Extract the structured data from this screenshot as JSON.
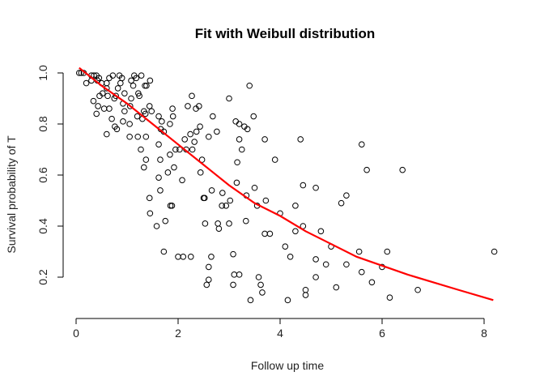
{
  "chart_data": {
    "type": "scatter",
    "title": "Fit with Weibull distribution",
    "xlabel": "Follow up time",
    "ylabel": "Survival probability of T",
    "xlim": [
      0,
      8.2
    ],
    "ylim": [
      0.1,
      1.0
    ],
    "xticks": [
      "0",
      "2",
      "4",
      "6",
      "8"
    ],
    "yticks": [
      "0.2",
      "0.4",
      "0.6",
      "0.8",
      "1.0"
    ],
    "grid": false,
    "colors": {
      "points": "#000000",
      "fit_line": "#ff0000"
    },
    "points": [
      [
        0.06,
        1.0
      ],
      [
        0.1,
        1.0
      ],
      [
        0.15,
        1.0
      ],
      [
        0.3,
        0.99
      ],
      [
        0.35,
        0.99
      ],
      [
        0.4,
        0.99
      ],
      [
        0.45,
        0.98
      ],
      [
        0.3,
        0.97
      ],
      [
        0.42,
        0.97
      ],
      [
        0.2,
        0.96
      ],
      [
        0.5,
        0.96
      ],
      [
        0.6,
        0.96
      ],
      [
        0.65,
        0.98
      ],
      [
        0.72,
        0.99
      ],
      [
        0.85,
        0.99
      ],
      [
        0.9,
        0.98
      ],
      [
        0.87,
        0.96
      ],
      [
        0.6,
        0.94
      ],
      [
        0.52,
        0.92
      ],
      [
        0.62,
        0.91
      ],
      [
        0.78,
        0.91
      ],
      [
        0.95,
        0.92
      ],
      [
        0.75,
        0.9
      ],
      [
        0.92,
        0.88
      ],
      [
        1.08,
        0.9
      ],
      [
        1.22,
        0.92
      ],
      [
        1.24,
        0.91
      ],
      [
        1.08,
        0.97
      ],
      [
        1.14,
        0.99
      ],
      [
        1.18,
        0.98
      ],
      [
        1.28,
        0.99
      ],
      [
        1.12,
        0.95
      ],
      [
        1.38,
        0.95
      ],
      [
        1.45,
        0.97
      ],
      [
        1.35,
        0.95
      ],
      [
        1.06,
        0.87
      ],
      [
        1.33,
        0.85
      ],
      [
        1.44,
        0.87
      ],
      [
        1.36,
        0.84
      ],
      [
        0.95,
        0.85
      ],
      [
        1.2,
        0.83
      ],
      [
        1.3,
        0.82
      ],
      [
        1.48,
        0.85
      ],
      [
        1.62,
        0.83
      ],
      [
        1.68,
        0.81
      ],
      [
        1.84,
        0.8
      ],
      [
        1.9,
        0.83
      ],
      [
        1.66,
        0.78
      ],
      [
        1.72,
        0.77
      ],
      [
        1.05,
        0.8
      ],
      [
        0.92,
        0.81
      ],
      [
        0.65,
        0.86
      ],
      [
        0.7,
        0.82
      ],
      [
        0.76,
        0.79
      ],
      [
        0.6,
        0.76
      ],
      [
        0.8,
        0.78
      ],
      [
        0.4,
        0.84
      ],
      [
        0.43,
        0.87
      ],
      [
        0.34,
        0.89
      ],
      [
        0.46,
        0.91
      ],
      [
        0.82,
        0.94
      ],
      [
        0.55,
        0.86
      ],
      [
        1.05,
        0.75
      ],
      [
        1.37,
        0.75
      ],
      [
        1.21,
        0.75
      ],
      [
        1.27,
        0.7
      ],
      [
        1.62,
        0.72
      ],
      [
        1.37,
        0.66
      ],
      [
        1.33,
        0.63
      ],
      [
        1.65,
        0.66
      ],
      [
        1.84,
        0.68
      ],
      [
        1.95,
        0.7
      ],
      [
        2.03,
        0.7
      ],
      [
        2.16,
        0.7
      ],
      [
        2.13,
        0.74
      ],
      [
        2.24,
        0.76
      ],
      [
        2.32,
        0.73
      ],
      [
        2.36,
        0.77
      ],
      [
        2.43,
        0.79
      ],
      [
        2.27,
        0.91
      ],
      [
        2.35,
        0.86
      ],
      [
        2.41,
        0.87
      ],
      [
        2.19,
        0.87
      ],
      [
        1.89,
        0.86
      ],
      [
        2.28,
        0.7
      ],
      [
        2.47,
        0.66
      ],
      [
        2.6,
        0.75
      ],
      [
        2.68,
        0.83
      ],
      [
        2.76,
        0.77
      ],
      [
        3.0,
        0.9
      ],
      [
        3.2,
        0.8
      ],
      [
        3.3,
        0.79
      ],
      [
        3.25,
        0.7
      ],
      [
        3.2,
        0.74
      ],
      [
        3.4,
        0.95
      ],
      [
        3.48,
        0.83
      ],
      [
        3.36,
        0.78
      ],
      [
        3.13,
        0.81
      ],
      [
        3.15,
        0.57
      ],
      [
        3.5,
        0.55
      ],
      [
        3.16,
        0.65
      ],
      [
        3.02,
        0.5
      ],
      [
        2.44,
        0.61
      ],
      [
        2.08,
        0.58
      ],
      [
        1.8,
        0.61
      ],
      [
        1.92,
        0.63
      ],
      [
        2.5,
        0.51
      ],
      [
        2.52,
        0.51
      ],
      [
        2.66,
        0.54
      ],
      [
        2.86,
        0.48
      ],
      [
        2.8,
        0.39
      ],
      [
        2.78,
        0.41
      ],
      [
        2.87,
        0.53
      ],
      [
        2.94,
        0.48
      ],
      [
        2.53,
        0.41
      ],
      [
        2.0,
        0.28
      ],
      [
        2.1,
        0.28
      ],
      [
        2.25,
        0.28
      ],
      [
        1.72,
        0.3
      ],
      [
        2.65,
        0.28
      ],
      [
        2.6,
        0.24
      ],
      [
        2.6,
        0.19
      ],
      [
        2.56,
        0.17
      ],
      [
        1.44,
        0.51
      ],
      [
        1.45,
        0.45
      ],
      [
        1.58,
        0.4
      ],
      [
        1.85,
        0.48
      ],
      [
        1.75,
        0.42
      ],
      [
        1.88,
        0.48
      ],
      [
        1.65,
        0.54
      ],
      [
        1.62,
        0.59
      ],
      [
        3.34,
        0.52
      ],
      [
        3.55,
        0.48
      ],
      [
        3.72,
        0.5
      ],
      [
        3.33,
        0.42
      ],
      [
        3.0,
        0.41
      ],
      [
        3.08,
        0.29
      ],
      [
        3.1,
        0.21
      ],
      [
        3.08,
        0.17
      ],
      [
        3.2,
        0.21
      ],
      [
        3.58,
        0.2
      ],
      [
        3.62,
        0.17
      ],
      [
        3.65,
        0.14
      ],
      [
        3.42,
        0.11
      ],
      [
        3.7,
        0.37
      ],
      [
        3.8,
        0.37
      ],
      [
        3.9,
        0.66
      ],
      [
        3.7,
        0.74
      ],
      [
        4.0,
        0.45
      ],
      [
        4.4,
        0.74
      ],
      [
        4.45,
        0.56
      ],
      [
        4.7,
        0.55
      ],
      [
        4.3,
        0.48
      ],
      [
        4.45,
        0.4
      ],
      [
        4.8,
        0.38
      ],
      [
        4.3,
        0.38
      ],
      [
        4.1,
        0.32
      ],
      [
        4.2,
        0.28
      ],
      [
        5.0,
        0.32
      ],
      [
        4.7,
        0.27
      ],
      [
        4.9,
        0.25
      ],
      [
        5.3,
        0.25
      ],
      [
        4.7,
        0.2
      ],
      [
        4.5,
        0.15
      ],
      [
        4.5,
        0.13
      ],
      [
        4.15,
        0.11
      ],
      [
        5.1,
        0.16
      ],
      [
        5.2,
        0.49
      ],
      [
        5.3,
        0.52
      ],
      [
        5.6,
        0.72
      ],
      [
        5.7,
        0.62
      ],
      [
        6.4,
        0.62
      ],
      [
        5.55,
        0.3
      ],
      [
        6.1,
        0.3
      ],
      [
        6.0,
        0.24
      ],
      [
        5.6,
        0.22
      ],
      [
        5.8,
        0.18
      ],
      [
        6.15,
        0.12
      ],
      [
        6.7,
        0.15
      ],
      [
        8.2,
        0.3
      ]
    ],
    "fit_line": [
      [
        0.06,
        1.02
      ],
      [
        0.5,
        0.95
      ],
      [
        1.0,
        0.88
      ],
      [
        1.5,
        0.8
      ],
      [
        2.0,
        0.72
      ],
      [
        2.5,
        0.64
      ],
      [
        3.0,
        0.56
      ],
      [
        3.5,
        0.49
      ],
      [
        4.0,
        0.44
      ],
      [
        4.5,
        0.38
      ],
      [
        5.0,
        0.33
      ],
      [
        5.5,
        0.28
      ],
      [
        6.0,
        0.245
      ],
      [
        6.5,
        0.21
      ],
      [
        7.0,
        0.18
      ],
      [
        7.5,
        0.15
      ],
      [
        8.18,
        0.11
      ]
    ]
  }
}
